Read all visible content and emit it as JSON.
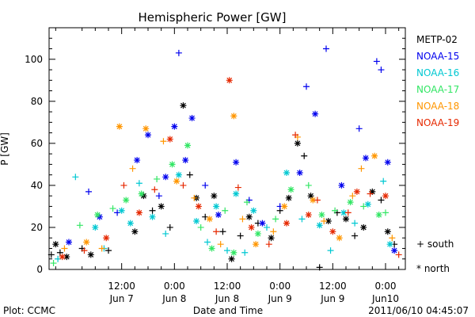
{
  "chart_data": {
    "type": "scatter",
    "title": "Hemispheric Power [GW]",
    "xlabel": "Date and Time",
    "ylabel": "P [GW]",
    "footer_left": "Plot: CCMC",
    "footer_right": "2011/06/10 04:45:07",
    "ylim": [
      0,
      115
    ],
    "xlim": [
      "2011-06-06T19:30",
      "2011-06-10T04:30"
    ],
    "grid": false,
    "legend_position": "right",
    "x_ticks": [
      {
        "time": "12:00",
        "date": "Jun 7"
      },
      {
        "time": "0:00",
        "date": "Jun 8"
      },
      {
        "time": "12:00",
        "date": "Jun 8"
      },
      {
        "time": "0:00",
        "date": "Jun 9"
      },
      {
        "time": "12:00",
        "date": "Jun 9"
      },
      {
        "time": "0:00",
        "date": "Jun10"
      }
    ],
    "y_ticks": [
      "0",
      "20",
      "40",
      "60",
      "80",
      "100"
    ],
    "marker_legend": {
      "south": "+ south",
      "north": "* north"
    },
    "series": [
      {
        "name": "METP-02",
        "color": "#000000",
        "points": [
          [
            "2011-06-06T20:00",
            7,
            "s"
          ],
          [
            "2011-06-06T21:00",
            12,
            "n"
          ],
          [
            "2011-06-06T22:00",
            8,
            "s"
          ],
          [
            "2011-06-06T23:30",
            6,
            "n"
          ],
          [
            "2011-06-07T03:00",
            10,
            "s"
          ],
          [
            "2011-06-07T05:00",
            7,
            "n"
          ],
          [
            "2011-06-07T09:00",
            9,
            "s"
          ],
          [
            "2011-06-07T15:00",
            18,
            "n"
          ],
          [
            "2011-06-07T17:00",
            35,
            "n"
          ],
          [
            "2011-06-07T19:00",
            28,
            "s"
          ],
          [
            "2011-06-07T21:00",
            30,
            "n"
          ],
          [
            "2011-06-07T23:00",
            20,
            "s"
          ],
          [
            "2011-06-08T02:00",
            78,
            "n"
          ],
          [
            "2011-06-08T03:30",
            45,
            "s"
          ],
          [
            "2011-06-08T05:00",
            34,
            "n"
          ],
          [
            "2011-06-08T07:00",
            25,
            "s"
          ],
          [
            "2011-06-08T09:00",
            35,
            "n"
          ],
          [
            "2011-06-08T11:00",
            18,
            "s"
          ],
          [
            "2011-06-08T13:00",
            5,
            "n"
          ],
          [
            "2011-06-08T15:00",
            16,
            "s"
          ],
          [
            "2011-06-08T17:00",
            25,
            "n"
          ],
          [
            "2011-06-08T19:00",
            22,
            "s"
          ],
          [
            "2011-06-08T22:00",
            15,
            "n"
          ],
          [
            "2011-06-09T00:00",
            28,
            "s"
          ],
          [
            "2011-06-09T02:00",
            34,
            "n"
          ],
          [
            "2011-06-09T04:00",
            60,
            "n"
          ],
          [
            "2011-06-09T05:30",
            54,
            "s"
          ],
          [
            "2011-06-09T07:00",
            35,
            "n"
          ],
          [
            "2011-06-09T09:00",
            1,
            "s"
          ],
          [
            "2011-06-09T11:00",
            23,
            "n"
          ],
          [
            "2011-06-09T13:00",
            27,
            "s"
          ],
          [
            "2011-06-09T15:00",
            24,
            "n"
          ],
          [
            "2011-06-09T17:00",
            16,
            "s"
          ],
          [
            "2011-06-09T19:00",
            20,
            "n"
          ],
          [
            "2011-06-09T21:00",
            37,
            "n"
          ],
          [
            "2011-06-09T23:00",
            33,
            "s"
          ],
          [
            "2011-06-10T00:30",
            18,
            "n"
          ],
          [
            "2011-06-10T02:00",
            12,
            "s"
          ]
        ]
      },
      {
        "name": "NOAA-15",
        "color": "#0000ee",
        "points": [
          [
            "2011-06-07T00:00",
            13,
            "n"
          ],
          [
            "2011-06-07T04:30",
            37,
            "s"
          ],
          [
            "2011-06-07T07:00",
            25,
            "n"
          ],
          [
            "2011-06-07T11:00",
            27,
            "s"
          ],
          [
            "2011-06-07T15:30",
            52,
            "n"
          ],
          [
            "2011-06-07T18:00",
            64,
            "n"
          ],
          [
            "2011-06-07T20:30",
            35,
            "s"
          ],
          [
            "2011-06-07T22:00",
            44,
            "n"
          ],
          [
            "2011-06-08T00:00",
            68,
            "n"
          ],
          [
            "2011-06-08T01:00",
            103,
            "s"
          ],
          [
            "2011-06-08T02:30",
            52,
            "n"
          ],
          [
            "2011-06-08T04:00",
            72,
            "n"
          ],
          [
            "2011-06-08T07:00",
            40,
            "s"
          ],
          [
            "2011-06-08T10:00",
            26,
            "n"
          ],
          [
            "2011-06-08T14:00",
            51,
            "n"
          ],
          [
            "2011-06-08T17:00",
            33,
            "s"
          ],
          [
            "2011-06-08T20:00",
            22,
            "n"
          ],
          [
            "2011-06-09T00:00",
            30,
            "s"
          ],
          [
            "2011-06-09T04:30",
            46,
            "n"
          ],
          [
            "2011-06-09T06:00",
            87,
            "s"
          ],
          [
            "2011-06-09T08:00",
            74,
            "n"
          ],
          [
            "2011-06-09T10:30",
            105,
            "s"
          ],
          [
            "2011-06-09T14:00",
            40,
            "n"
          ],
          [
            "2011-06-09T18:00",
            67,
            "s"
          ],
          [
            "2011-06-09T19:30",
            53,
            "n"
          ],
          [
            "2011-06-09T22:00",
            99,
            "s"
          ],
          [
            "2011-06-09T23:00",
            95,
            "s"
          ],
          [
            "2011-06-10T00:30",
            51,
            "n"
          ],
          [
            "2011-06-10T02:00",
            9,
            "n"
          ]
        ]
      },
      {
        "name": "NOAA-16",
        "color": "#00c8d2",
        "points": [
          [
            "2011-06-06T21:30",
            5,
            "s"
          ],
          [
            "2011-06-07T01:30",
            44,
            "s"
          ],
          [
            "2011-06-07T06:00",
            20,
            "n"
          ],
          [
            "2011-06-07T08:00",
            10,
            "s"
          ],
          [
            "2011-06-07T12:00",
            28,
            "n"
          ],
          [
            "2011-06-07T14:00",
            22,
            "n"
          ],
          [
            "2011-06-07T16:00",
            41,
            "s"
          ],
          [
            "2011-06-07T19:00",
            25,
            "n"
          ],
          [
            "2011-06-07T22:00",
            17,
            "s"
          ],
          [
            "2011-06-08T01:00",
            45,
            "n"
          ],
          [
            "2011-06-08T05:00",
            23,
            "n"
          ],
          [
            "2011-06-08T07:30",
            13,
            "s"
          ],
          [
            "2011-06-08T09:30",
            30,
            "n"
          ],
          [
            "2011-06-08T12:00",
            9,
            "s"
          ],
          [
            "2011-06-08T14:00",
            36,
            "n"
          ],
          [
            "2011-06-08T16:00",
            8,
            "s"
          ],
          [
            "2011-06-08T18:00",
            28,
            "n"
          ],
          [
            "2011-06-08T21:00",
            20,
            "s"
          ],
          [
            "2011-06-09T01:30",
            46,
            "n"
          ],
          [
            "2011-06-09T05:00",
            24,
            "s"
          ],
          [
            "2011-06-09T09:00",
            21,
            "n"
          ],
          [
            "2011-06-09T11:30",
            9,
            "s"
          ],
          [
            "2011-06-09T14:30",
            27,
            "n"
          ],
          [
            "2011-06-09T17:00",
            22,
            "s"
          ],
          [
            "2011-06-09T20:00",
            31,
            "n"
          ],
          [
            "2011-06-09T23:30",
            42,
            "s"
          ],
          [
            "2011-06-10T01:00",
            12,
            "n"
          ]
        ]
      },
      {
        "name": "NOAA-17",
        "color": "#32e664",
        "points": [
          [
            "2011-06-06T20:30",
            3,
            "s"
          ],
          [
            "2011-06-07T02:30",
            21,
            "s"
          ],
          [
            "2011-06-07T06:30",
            26,
            "n"
          ],
          [
            "2011-06-07T10:00",
            29,
            "s"
          ],
          [
            "2011-06-07T13:00",
            33,
            "n"
          ],
          [
            "2011-06-07T16:30",
            36,
            "n"
          ],
          [
            "2011-06-07T20:00",
            43,
            "s"
          ],
          [
            "2011-06-07T23:30",
            50,
            "n"
          ],
          [
            "2011-06-08T03:00",
            59,
            "n"
          ],
          [
            "2011-06-08T06:00",
            20,
            "s"
          ],
          [
            "2011-06-08T08:30",
            10,
            "n"
          ],
          [
            "2011-06-08T11:30",
            28,
            "s"
          ],
          [
            "2011-06-08T13:30",
            8,
            "n"
          ],
          [
            "2011-06-08T16:30",
            32,
            "s"
          ],
          [
            "2011-06-08T19:00",
            17,
            "n"
          ],
          [
            "2011-06-08T23:00",
            24,
            "s"
          ],
          [
            "2011-06-09T02:30",
            38,
            "n"
          ],
          [
            "2011-06-09T06:30",
            40,
            "s"
          ],
          [
            "2011-06-09T09:30",
            26,
            "n"
          ],
          [
            "2011-06-09T12:30",
            28,
            "s"
          ],
          [
            "2011-06-09T16:00",
            32,
            "n"
          ],
          [
            "2011-06-09T19:00",
            30,
            "s"
          ],
          [
            "2011-06-09T22:30",
            26,
            "n"
          ],
          [
            "2011-06-10T00:00",
            27,
            "s"
          ]
        ]
      },
      {
        "name": "NOAA-18",
        "color": "#ff9600",
        "points": [
          [
            "2011-06-06T23:00",
            10,
            "s"
          ],
          [
            "2011-06-07T04:00",
            13,
            "n"
          ],
          [
            "2011-06-07T07:30",
            10,
            "s"
          ],
          [
            "2011-06-07T11:30",
            68,
            "n"
          ],
          [
            "2011-06-07T14:30",
            48,
            "s"
          ],
          [
            "2011-06-07T17:30",
            67,
            "n"
          ],
          [
            "2011-06-07T21:30",
            61,
            "s"
          ],
          [
            "2011-06-08T00:30",
            42,
            "n"
          ],
          [
            "2011-06-08T04:30",
            34,
            "s"
          ],
          [
            "2011-06-08T08:00",
            24,
            "n"
          ],
          [
            "2011-06-08T10:30",
            12,
            "s"
          ],
          [
            "2011-06-08T13:30",
            73,
            "n"
          ],
          [
            "2011-06-08T15:30",
            24,
            "s"
          ],
          [
            "2011-06-08T18:30",
            12,
            "n"
          ],
          [
            "2011-06-08T22:30",
            18,
            "s"
          ],
          [
            "2011-06-09T01:00",
            30,
            "n"
          ],
          [
            "2011-06-09T04:00",
            63,
            "s"
          ],
          [
            "2011-06-09T07:30",
            33,
            "n"
          ],
          [
            "2011-06-09T10:00",
            23,
            "s"
          ],
          [
            "2011-06-09T13:30",
            15,
            "n"
          ],
          [
            "2011-06-09T16:30",
            35,
            "s"
          ],
          [
            "2011-06-09T18:30",
            48,
            "s"
          ],
          [
            "2011-06-09T21:30",
            54,
            "n"
          ],
          [
            "2011-06-10T01:30",
            15,
            "s"
          ]
        ]
      },
      {
        "name": "NOAA-19",
        "color": "#e62800",
        "points": [
          [
            "2011-06-06T22:30",
            6,
            "n"
          ],
          [
            "2011-06-07T03:30",
            9,
            "s"
          ],
          [
            "2011-06-07T08:30",
            15,
            "n"
          ],
          [
            "2011-06-07T12:30",
            40,
            "s"
          ],
          [
            "2011-06-07T16:00",
            27,
            "n"
          ],
          [
            "2011-06-07T19:30",
            38,
            "s"
          ],
          [
            "2011-06-07T23:00",
            62,
            "n"
          ],
          [
            "2011-06-08T02:00",
            40,
            "s"
          ],
          [
            "2011-06-08T05:30",
            30,
            "n"
          ],
          [
            "2011-06-08T09:30",
            18,
            "s"
          ],
          [
            "2011-06-08T12:30",
            90,
            "n"
          ],
          [
            "2011-06-08T14:30",
            39,
            "s"
          ],
          [
            "2011-06-08T17:30",
            20,
            "n"
          ],
          [
            "2011-06-08T21:30",
            12,
            "s"
          ],
          [
            "2011-06-09T01:30",
            22,
            "n"
          ],
          [
            "2011-06-09T03:30",
            64,
            "s"
          ],
          [
            "2011-06-09T06:30",
            26,
            "n"
          ],
          [
            "2011-06-09T08:30",
            33,
            "s"
          ],
          [
            "2011-06-09T12:00",
            18,
            "n"
          ],
          [
            "2011-06-09T15:30",
            27,
            "s"
          ],
          [
            "2011-06-09T17:30",
            37,
            "n"
          ],
          [
            "2011-06-09T20:30",
            36,
            "s"
          ],
          [
            "2011-06-10T00:00",
            35,
            "n"
          ],
          [
            "2011-06-10T03:00",
            7,
            "s"
          ]
        ]
      }
    ]
  }
}
